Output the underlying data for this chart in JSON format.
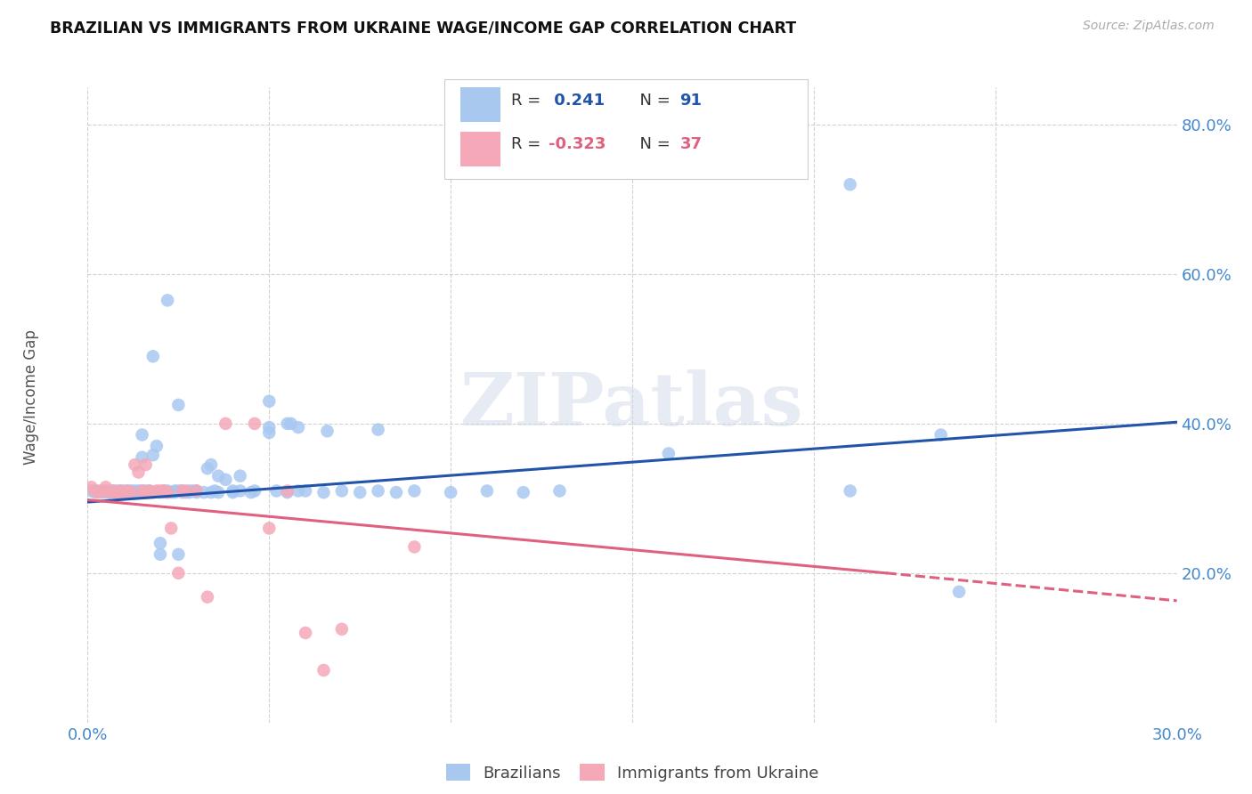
{
  "title": "BRAZILIAN VS IMMIGRANTS FROM UKRAINE WAGE/INCOME GAP CORRELATION CHART",
  "source": "Source: ZipAtlas.com",
  "ylabel": "Wage/Income Gap",
  "xlim": [
    0.0,
    0.3
  ],
  "ylim": [
    0.0,
    0.85
  ],
  "x_ticks": [
    0.0,
    0.05,
    0.1,
    0.15,
    0.2,
    0.25,
    0.3
  ],
  "x_tick_labels": [
    "0.0%",
    "",
    "",
    "",
    "",
    "",
    "30.0%"
  ],
  "y_ticks": [
    0.2,
    0.4,
    0.6,
    0.8
  ],
  "y_tick_labels": [
    "20.0%",
    "40.0%",
    "60.0%",
    "80.0%"
  ],
  "blue_color": "#a8c8f0",
  "pink_color": "#f4a8b8",
  "blue_line_color": "#2255aa",
  "pink_line_color": "#e06080",
  "axis_tick_color": "#4488cc",
  "watermark_text": "ZIPatlas",
  "blue_scatter": [
    [
      0.001,
      0.31
    ],
    [
      0.002,
      0.308
    ],
    [
      0.003,
      0.31
    ],
    [
      0.004,
      0.308
    ],
    [
      0.005,
      0.31
    ],
    [
      0.005,
      0.308
    ],
    [
      0.006,
      0.31
    ],
    [
      0.006,
      0.308
    ],
    [
      0.007,
      0.308
    ],
    [
      0.007,
      0.31
    ],
    [
      0.008,
      0.308
    ],
    [
      0.008,
      0.31
    ],
    [
      0.009,
      0.31
    ],
    [
      0.009,
      0.308
    ],
    [
      0.01,
      0.31
    ],
    [
      0.01,
      0.308
    ],
    [
      0.011,
      0.308
    ],
    [
      0.011,
      0.31
    ],
    [
      0.012,
      0.308
    ],
    [
      0.012,
      0.31
    ],
    [
      0.013,
      0.31
    ],
    [
      0.013,
      0.308
    ],
    [
      0.014,
      0.308
    ],
    [
      0.014,
      0.31
    ],
    [
      0.015,
      0.355
    ],
    [
      0.015,
      0.31
    ],
    [
      0.016,
      0.31
    ],
    [
      0.016,
      0.308
    ],
    [
      0.017,
      0.31
    ],
    [
      0.017,
      0.308
    ],
    [
      0.018,
      0.358
    ],
    [
      0.019,
      0.37
    ],
    [
      0.02,
      0.308
    ],
    [
      0.02,
      0.24
    ],
    [
      0.02,
      0.225
    ],
    [
      0.021,
      0.31
    ],
    [
      0.021,
      0.308
    ],
    [
      0.022,
      0.308
    ],
    [
      0.022,
      0.31
    ],
    [
      0.023,
      0.308
    ],
    [
      0.024,
      0.31
    ],
    [
      0.024,
      0.308
    ],
    [
      0.025,
      0.31
    ],
    [
      0.025,
      0.225
    ],
    [
      0.026,
      0.308
    ],
    [
      0.026,
      0.31
    ],
    [
      0.027,
      0.308
    ],
    [
      0.028,
      0.31
    ],
    [
      0.028,
      0.308
    ],
    [
      0.029,
      0.31
    ],
    [
      0.03,
      0.308
    ],
    [
      0.03,
      0.31
    ],
    [
      0.032,
      0.308
    ],
    [
      0.033,
      0.34
    ],
    [
      0.034,
      0.345
    ],
    [
      0.034,
      0.308
    ],
    [
      0.035,
      0.31
    ],
    [
      0.036,
      0.33
    ],
    [
      0.036,
      0.308
    ],
    [
      0.038,
      0.325
    ],
    [
      0.04,
      0.31
    ],
    [
      0.04,
      0.308
    ],
    [
      0.042,
      0.33
    ],
    [
      0.042,
      0.31
    ],
    [
      0.045,
      0.308
    ],
    [
      0.046,
      0.31
    ],
    [
      0.05,
      0.395
    ],
    [
      0.05,
      0.388
    ],
    [
      0.052,
      0.31
    ],
    [
      0.055,
      0.308
    ],
    [
      0.056,
      0.4
    ],
    [
      0.058,
      0.31
    ],
    [
      0.06,
      0.31
    ],
    [
      0.065,
      0.308
    ],
    [
      0.07,
      0.31
    ],
    [
      0.075,
      0.308
    ],
    [
      0.08,
      0.31
    ],
    [
      0.085,
      0.308
    ],
    [
      0.09,
      0.31
    ],
    [
      0.1,
      0.308
    ],
    [
      0.11,
      0.31
    ],
    [
      0.12,
      0.308
    ],
    [
      0.13,
      0.31
    ],
    [
      0.16,
      0.36
    ],
    [
      0.21,
      0.31
    ],
    [
      0.24,
      0.175
    ],
    [
      0.015,
      0.385
    ],
    [
      0.018,
      0.49
    ],
    [
      0.022,
      0.565
    ],
    [
      0.025,
      0.425
    ],
    [
      0.05,
      0.43
    ],
    [
      0.055,
      0.4
    ],
    [
      0.058,
      0.395
    ],
    [
      0.066,
      0.39
    ],
    [
      0.08,
      0.392
    ],
    [
      0.21,
      0.72
    ],
    [
      0.235,
      0.385
    ]
  ],
  "pink_scatter": [
    [
      0.001,
      0.315
    ],
    [
      0.002,
      0.31
    ],
    [
      0.003,
      0.308
    ],
    [
      0.004,
      0.31
    ],
    [
      0.005,
      0.315
    ],
    [
      0.006,
      0.308
    ],
    [
      0.007,
      0.31
    ],
    [
      0.008,
      0.308
    ],
    [
      0.009,
      0.31
    ],
    [
      0.01,
      0.308
    ],
    [
      0.011,
      0.31
    ],
    [
      0.012,
      0.308
    ],
    [
      0.013,
      0.345
    ],
    [
      0.014,
      0.335
    ],
    [
      0.015,
      0.31
    ],
    [
      0.016,
      0.308
    ],
    [
      0.016,
      0.345
    ],
    [
      0.017,
      0.31
    ],
    [
      0.018,
      0.308
    ],
    [
      0.019,
      0.31
    ],
    [
      0.02,
      0.31
    ],
    [
      0.021,
      0.31
    ],
    [
      0.022,
      0.308
    ],
    [
      0.023,
      0.26
    ],
    [
      0.025,
      0.2
    ],
    [
      0.026,
      0.31
    ],
    [
      0.027,
      0.31
    ],
    [
      0.03,
      0.31
    ],
    [
      0.033,
      0.168
    ],
    [
      0.038,
      0.4
    ],
    [
      0.046,
      0.4
    ],
    [
      0.05,
      0.26
    ],
    [
      0.055,
      0.31
    ],
    [
      0.06,
      0.12
    ],
    [
      0.065,
      0.07
    ],
    [
      0.07,
      0.125
    ],
    [
      0.09,
      0.235
    ]
  ],
  "blue_trendline": [
    [
      0.0,
      0.295
    ],
    [
      0.3,
      0.402
    ]
  ],
  "pink_trendline": [
    [
      0.0,
      0.298
    ],
    [
      0.22,
      0.2
    ]
  ],
  "pink_trendline_dashed": [
    [
      0.22,
      0.2
    ],
    [
      0.3,
      0.163
    ]
  ]
}
